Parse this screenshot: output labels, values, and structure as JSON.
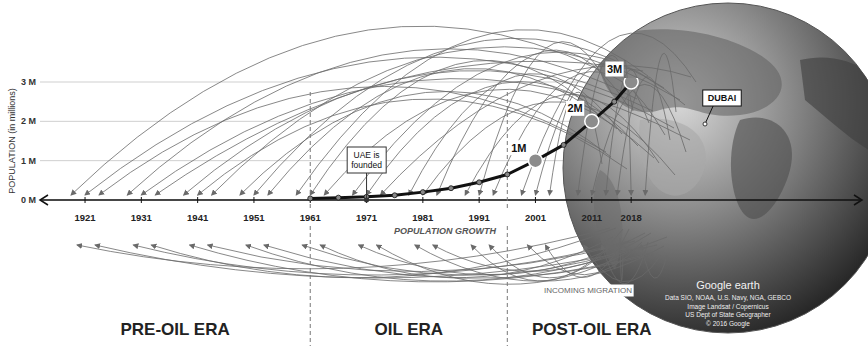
{
  "chart_data": {
    "type": "line",
    "y_label": "POPULATION (in millions)",
    "xlim": [
      1913,
      2059
    ],
    "xticks": [
      1921,
      1931,
      1941,
      1951,
      1961,
      1971,
      1981,
      1991,
      2001,
      2011,
      2018
    ],
    "ylim": [
      0,
      3
    ],
    "yticks": [
      {
        "value": 0,
        "label": "0 M"
      },
      {
        "value": 1,
        "label": "1 M"
      },
      {
        "value": 2,
        "label": "2 M"
      },
      {
        "value": 3,
        "label": "3 M"
      }
    ],
    "grid": true,
    "series": [
      {
        "name": "POPULATION GROWTH",
        "color": "#111111",
        "marker": "circle",
        "x": [
          1961,
          1966,
          1971,
          1976,
          1981,
          1986,
          1991,
          1996,
          2001,
          2006,
          2011,
          2015,
          2018
        ],
        "values": [
          0.04,
          0.06,
          0.08,
          0.12,
          0.2,
          0.3,
          0.45,
          0.65,
          1,
          1.4,
          2,
          2.5,
          3
        ]
      }
    ],
    "milestones": [
      {
        "label": "1M",
        "x": 2001,
        "value": 1
      },
      {
        "label": "2M",
        "x": 2011,
        "value": 2
      },
      {
        "label": "3M",
        "x": 2018,
        "value": 3
      }
    ],
    "annotations": [
      {
        "text": "UAE is founded",
        "x": 1971
      }
    ],
    "eras": [
      {
        "label": "PRE-OIL ERA",
        "start": 1913,
        "end": 1961
      },
      {
        "label": "OIL ERA",
        "start": 1961,
        "end": 1996
      },
      {
        "label": "POST-OIL ERA",
        "start": 1996,
        "end": 2026
      }
    ],
    "migration_label": "INCOMING MIGRATION",
    "globe": {
      "label": "DUBAI",
      "brand": "Google earth",
      "credits": [
        "Data SIO, NOAA, U.S. Navy, NGA, GEBCO",
        "Image Landsat / Copernicus",
        "US Dept of State Geographer",
        "© 2016 Google"
      ]
    }
  }
}
